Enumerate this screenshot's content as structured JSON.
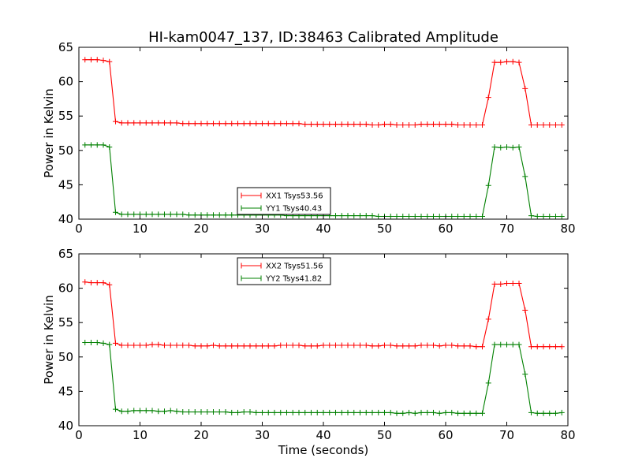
{
  "title": "HI-kam0047_137, ID:38463 Calibrated Amplitude",
  "colors": {
    "xx": "#ff0000",
    "yy": "#008000"
  },
  "chart_data": [
    {
      "type": "line",
      "xlabel": "",
      "ylabel": "Power in Kelvin",
      "xlim": [
        0,
        80
      ],
      "ylim": [
        40,
        65
      ],
      "xticks": [
        0,
        10,
        20,
        30,
        40,
        50,
        60,
        70,
        80
      ],
      "yticks": [
        40,
        45,
        50,
        55,
        60,
        65
      ],
      "legend_position": "lower-center",
      "x": [
        1,
        2,
        3,
        4,
        5,
        6,
        7,
        8,
        9,
        10,
        11,
        12,
        13,
        14,
        15,
        16,
        17,
        18,
        19,
        20,
        21,
        22,
        23,
        24,
        25,
        26,
        27,
        28,
        29,
        30,
        31,
        32,
        33,
        34,
        35,
        36,
        37,
        38,
        39,
        40,
        41,
        42,
        43,
        44,
        45,
        46,
        47,
        48,
        49,
        50,
        51,
        52,
        53,
        54,
        55,
        56,
        57,
        58,
        59,
        60,
        61,
        62,
        63,
        64,
        65,
        66,
        67,
        68,
        69,
        70,
        71,
        72,
        73,
        74,
        75,
        76,
        77,
        78,
        79
      ],
      "series": [
        {
          "name": "XX1 Tsys53.56",
          "color": "#ff0000",
          "values": [
            63.2,
            63.2,
            63.2,
            63.1,
            62.9,
            54.2,
            54.0,
            54.0,
            54.0,
            54.0,
            54.0,
            54.0,
            54.0,
            54.0,
            54.0,
            54.0,
            53.9,
            53.9,
            53.9,
            53.9,
            53.9,
            53.9,
            53.9,
            53.9,
            53.9,
            53.9,
            53.9,
            53.9,
            53.9,
            53.9,
            53.9,
            53.9,
            53.9,
            53.9,
            53.9,
            53.9,
            53.8,
            53.8,
            53.8,
            53.8,
            53.8,
            53.8,
            53.8,
            53.8,
            53.8,
            53.8,
            53.8,
            53.7,
            53.7,
            53.8,
            53.8,
            53.7,
            53.7,
            53.7,
            53.7,
            53.8,
            53.8,
            53.8,
            53.8,
            53.8,
            53.8,
            53.7,
            53.7,
            53.7,
            53.7,
            53.7,
            57.7,
            62.8,
            62.8,
            62.9,
            62.9,
            62.8,
            59.0,
            53.7,
            53.7,
            53.7,
            53.7,
            53.7,
            53.7
          ]
        },
        {
          "name": "YY1 Tsys40.43",
          "color": "#008000",
          "values": [
            50.8,
            50.8,
            50.8,
            50.8,
            50.5,
            41.0,
            40.7,
            40.7,
            40.7,
            40.7,
            40.7,
            40.7,
            40.7,
            40.7,
            40.7,
            40.7,
            40.7,
            40.6,
            40.6,
            40.6,
            40.6,
            40.6,
            40.6,
            40.6,
            40.6,
            40.6,
            40.6,
            40.6,
            40.6,
            40.6,
            40.6,
            40.6,
            40.6,
            40.5,
            40.5,
            40.5,
            40.5,
            40.5,
            40.5,
            40.5,
            40.5,
            40.5,
            40.5,
            40.5,
            40.5,
            40.5,
            40.5,
            40.5,
            40.4,
            40.4,
            40.4,
            40.4,
            40.4,
            40.4,
            40.4,
            40.4,
            40.4,
            40.4,
            40.4,
            40.4,
            40.4,
            40.4,
            40.4,
            40.4,
            40.4,
            40.4,
            44.9,
            50.5,
            50.4,
            50.5,
            50.4,
            50.5,
            46.2,
            40.5,
            40.4,
            40.4,
            40.4,
            40.4,
            40.4
          ]
        }
      ]
    },
    {
      "type": "line",
      "xlabel": "Time (seconds)",
      "ylabel": "Power in Kelvin",
      "xlim": [
        0,
        80
      ],
      "ylim": [
        40,
        65
      ],
      "xticks": [
        0,
        10,
        20,
        30,
        40,
        50,
        60,
        70,
        80
      ],
      "yticks": [
        40,
        45,
        50,
        55,
        60,
        65
      ],
      "legend_position": "upper-center",
      "x": [
        1,
        2,
        3,
        4,
        5,
        6,
        7,
        8,
        9,
        10,
        11,
        12,
        13,
        14,
        15,
        16,
        17,
        18,
        19,
        20,
        21,
        22,
        23,
        24,
        25,
        26,
        27,
        28,
        29,
        30,
        31,
        32,
        33,
        34,
        35,
        36,
        37,
        38,
        39,
        40,
        41,
        42,
        43,
        44,
        45,
        46,
        47,
        48,
        49,
        50,
        51,
        52,
        53,
        54,
        55,
        56,
        57,
        58,
        59,
        60,
        61,
        62,
        63,
        64,
        65,
        66,
        67,
        68,
        69,
        70,
        71,
        72,
        73,
        74,
        75,
        76,
        77,
        78,
        79
      ],
      "series": [
        {
          "name": "XX2 Tsys51.56",
          "color": "#ff0000",
          "values": [
            60.9,
            60.8,
            60.8,
            60.8,
            60.5,
            52.0,
            51.7,
            51.7,
            51.7,
            51.7,
            51.7,
            51.8,
            51.8,
            51.7,
            51.7,
            51.7,
            51.7,
            51.7,
            51.6,
            51.6,
            51.6,
            51.7,
            51.6,
            51.6,
            51.6,
            51.6,
            51.6,
            51.6,
            51.6,
            51.6,
            51.6,
            51.6,
            51.7,
            51.7,
            51.7,
            51.7,
            51.6,
            51.6,
            51.6,
            51.7,
            51.7,
            51.7,
            51.7,
            51.7,
            51.7,
            51.7,
            51.7,
            51.6,
            51.6,
            51.7,
            51.7,
            51.6,
            51.6,
            51.6,
            51.6,
            51.7,
            51.7,
            51.7,
            51.6,
            51.7,
            51.7,
            51.6,
            51.6,
            51.6,
            51.5,
            51.5,
            55.5,
            60.6,
            60.6,
            60.7,
            60.7,
            60.7,
            56.8,
            51.5,
            51.5,
            51.5,
            51.5,
            51.5,
            51.5
          ]
        },
        {
          "name": "YY2 Tsys41.82",
          "color": "#008000",
          "values": [
            52.1,
            52.1,
            52.1,
            52.0,
            51.8,
            42.4,
            42.1,
            42.1,
            42.2,
            42.2,
            42.2,
            42.2,
            42.1,
            42.1,
            42.2,
            42.1,
            42.0,
            42.0,
            42.0,
            42.0,
            42.0,
            42.0,
            42.0,
            42.0,
            41.9,
            41.9,
            42.0,
            42.0,
            41.9,
            41.9,
            41.9,
            41.9,
            41.9,
            41.9,
            41.9,
            41.9,
            41.9,
            41.9,
            41.9,
            41.9,
            41.9,
            41.9,
            41.9,
            41.9,
            41.9,
            41.9,
            41.9,
            41.9,
            41.9,
            41.9,
            41.9,
            41.8,
            41.8,
            41.9,
            41.8,
            41.9,
            41.9,
            41.9,
            41.8,
            41.9,
            41.9,
            41.8,
            41.8,
            41.8,
            41.8,
            41.8,
            46.2,
            51.8,
            51.8,
            51.8,
            51.8,
            51.8,
            47.5,
            41.9,
            41.8,
            41.8,
            41.8,
            41.8,
            41.9
          ]
        }
      ]
    }
  ]
}
